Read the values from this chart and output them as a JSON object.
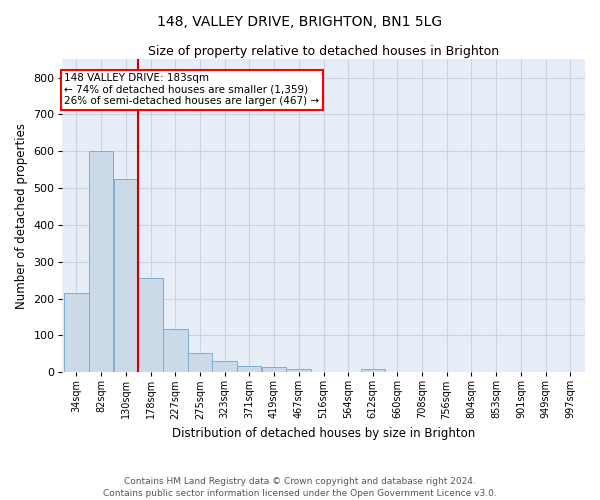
{
  "title": "148, VALLEY DRIVE, BRIGHTON, BN1 5LG",
  "subtitle": "Size of property relative to detached houses in Brighton",
  "xlabel": "Distribution of detached houses by size in Brighton",
  "ylabel": "Number of detached properties",
  "bar_color": "#ccd9e8",
  "bar_edge_color": "#7aafd4",
  "grid_color": "#c8d4e4",
  "background_color": "#e8eef8",
  "red_line_color": "#cc0000",
  "annotation_text": "148 VALLEY DRIVE: 183sqm\n← 74% of detached houses are smaller (1,359)\n26% of semi-detached houses are larger (467) →",
  "annotation_fontsize": 7.5,
  "categories": [
    "34sqm",
    "82sqm",
    "130sqm",
    "178sqm",
    "227sqm",
    "275sqm",
    "323sqm",
    "371sqm",
    "419sqm",
    "467sqm",
    "516sqm",
    "564sqm",
    "612sqm",
    "660sqm",
    "708sqm",
    "756sqm",
    "804sqm",
    "853sqm",
    "901sqm",
    "949sqm",
    "997sqm"
  ],
  "bin_edges": [
    34,
    82,
    130,
    178,
    227,
    275,
    323,
    371,
    419,
    467,
    516,
    564,
    612,
    660,
    708,
    756,
    804,
    853,
    901,
    949,
    997,
    1045
  ],
  "values": [
    215,
    600,
    525,
    255,
    116,
    53,
    30,
    18,
    14,
    10,
    0,
    0,
    10,
    0,
    0,
    0,
    0,
    0,
    0,
    0,
    0
  ],
  "red_line_x": 178,
  "ylim": [
    0,
    850
  ],
  "yticks": [
    0,
    100,
    200,
    300,
    400,
    500,
    600,
    700,
    800
  ],
  "title_fontsize": 10,
  "subtitle_fontsize": 9,
  "ylabel_fontsize": 8.5,
  "xlabel_fontsize": 8.5,
  "tick_fontsize": 7,
  "footer": "Contains HM Land Registry data © Crown copyright and database right 2024.\nContains public sector information licensed under the Open Government Licence v3.0.",
  "footer_fontsize": 6.5
}
